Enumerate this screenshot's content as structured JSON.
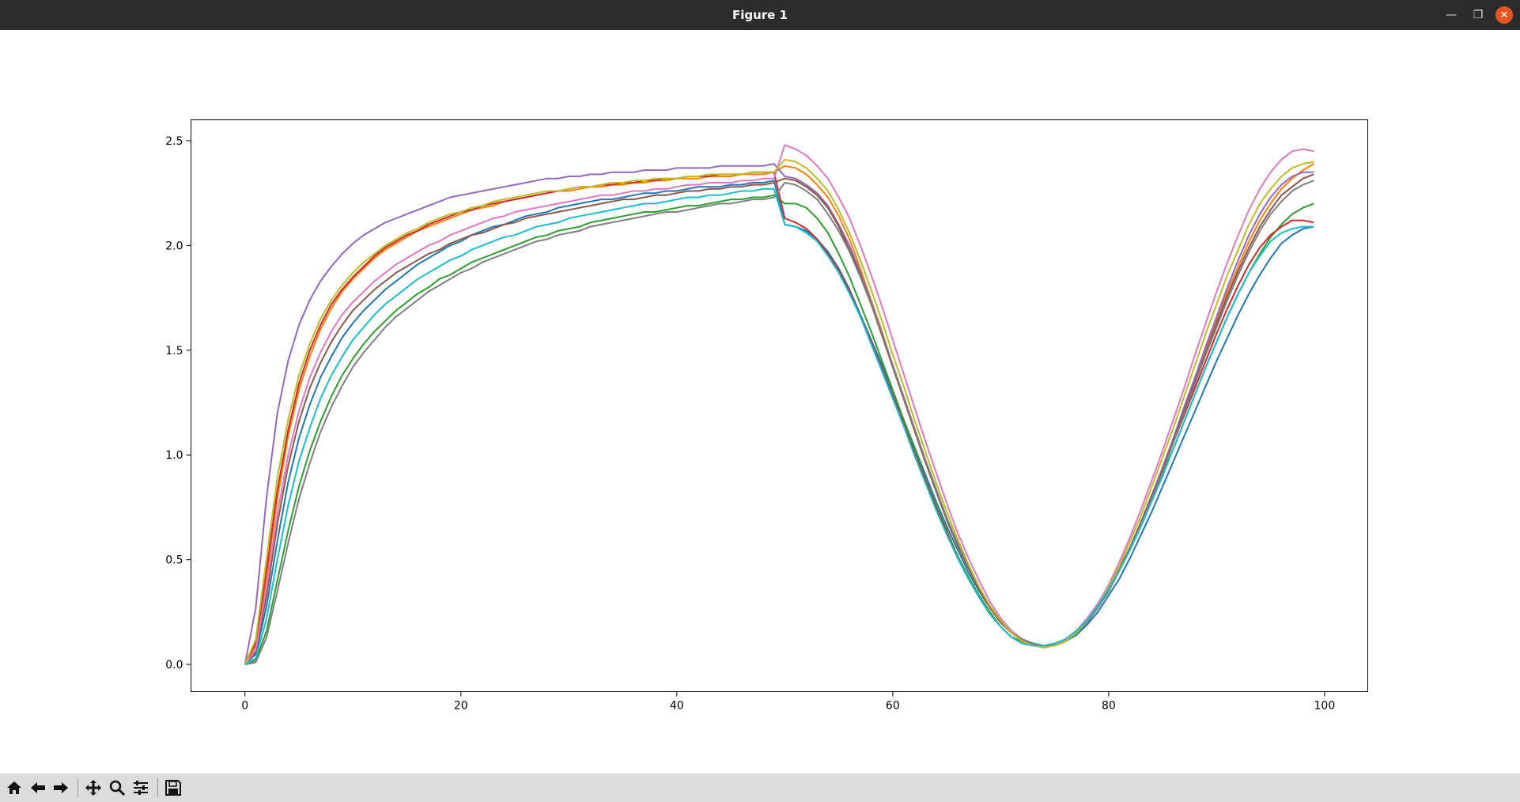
{
  "window": {
    "title": "Figure 1"
  },
  "toolbar": {
    "buttons": [
      {
        "name": "home-button",
        "icon": "home-icon"
      },
      {
        "name": "back-button",
        "icon": "arrow-left-icon"
      },
      {
        "name": "forward-button",
        "icon": "arrow-right-icon"
      },
      {
        "name": "pan-button",
        "icon": "move-icon"
      },
      {
        "name": "zoom-button",
        "icon": "magnifier-icon"
      },
      {
        "name": "configure-subplots-button",
        "icon": "sliders-icon"
      },
      {
        "name": "save-button",
        "icon": "floppy-disk-icon"
      }
    ]
  },
  "chart_data": {
    "type": "line",
    "title": "",
    "xlabel": "",
    "ylabel": "",
    "xlim": [
      -5,
      104
    ],
    "ylim": [
      -0.13,
      2.6
    ],
    "xticks": [
      0,
      20,
      40,
      60,
      80,
      100
    ],
    "yticks": [
      0.0,
      0.5,
      1.0,
      1.5,
      2.0,
      2.5
    ],
    "xtick_labels": [
      "0",
      "20",
      "40",
      "60",
      "80",
      "100"
    ],
    "ytick_labels": [
      "0.0",
      "0.5",
      "1.0",
      "1.5",
      "2.0",
      "2.5"
    ],
    "grid": false,
    "legend": "none",
    "x": [
      0,
      1,
      2,
      3,
      4,
      5,
      6,
      7,
      8,
      9,
      10,
      11,
      12,
      13,
      14,
      15,
      16,
      17,
      18,
      19,
      20,
      21,
      22,
      23,
      24,
      25,
      26,
      27,
      28,
      29,
      30,
      31,
      32,
      33,
      34,
      35,
      36,
      37,
      38,
      39,
      40,
      41,
      42,
      43,
      44,
      45,
      46,
      47,
      48,
      49,
      50,
      51,
      52,
      53,
      54,
      55,
      56,
      57,
      58,
      59,
      60,
      61,
      62,
      63,
      64,
      65,
      66,
      67,
      68,
      69,
      70,
      71,
      72,
      73,
      74,
      75,
      76,
      77,
      78,
      79,
      80,
      81,
      82,
      83,
      84,
      85,
      86,
      87,
      88,
      89,
      90,
      91,
      92,
      93,
      94,
      95,
      96,
      97,
      98,
      99
    ],
    "series": [
      {
        "color": "#1f77b4",
        "values": [
          0.0,
          0.05,
          0.28,
          0.59,
          0.87,
          1.08,
          1.24,
          1.37,
          1.47,
          1.56,
          1.63,
          1.69,
          1.74,
          1.79,
          1.83,
          1.87,
          1.91,
          1.94,
          1.97,
          2.0,
          2.02,
          2.05,
          2.07,
          2.09,
          2.1,
          2.12,
          2.14,
          2.15,
          2.16,
          2.18,
          2.19,
          2.2,
          2.21,
          2.22,
          2.22,
          2.23,
          2.24,
          2.25,
          2.25,
          2.26,
          2.26,
          2.27,
          2.28,
          2.28,
          2.28,
          2.29,
          2.29,
          2.3,
          2.3,
          2.31,
          2.1,
          2.09,
          2.07,
          2.03,
          1.97,
          1.89,
          1.79,
          1.67,
          1.55,
          1.43,
          1.3,
          1.17,
          1.04,
          0.91,
          0.78,
          0.66,
          0.55,
          0.44,
          0.35,
          0.27,
          0.2,
          0.15,
          0.12,
          0.1,
          0.09,
          0.09,
          0.11,
          0.14,
          0.19,
          0.25,
          0.33,
          0.41,
          0.51,
          0.62,
          0.73,
          0.85,
          0.97,
          1.09,
          1.21,
          1.33,
          1.45,
          1.56,
          1.67,
          1.77,
          1.86,
          1.94,
          2.01,
          2.05,
          2.08,
          2.09
        ]
      },
      {
        "color": "#ff7f0e",
        "values": [
          0.0,
          0.09,
          0.42,
          0.79,
          1.09,
          1.31,
          1.47,
          1.6,
          1.7,
          1.78,
          1.84,
          1.89,
          1.94,
          1.98,
          2.01,
          2.04,
          2.07,
          2.09,
          2.11,
          2.13,
          2.15,
          2.17,
          2.18,
          2.19,
          2.21,
          2.22,
          2.23,
          2.24,
          2.25,
          2.26,
          2.26,
          2.27,
          2.28,
          2.28,
          2.29,
          2.29,
          2.3,
          2.3,
          2.31,
          2.31,
          2.32,
          2.32,
          2.32,
          2.33,
          2.33,
          2.33,
          2.34,
          2.34,
          2.34,
          2.35,
          2.38,
          2.37,
          2.34,
          2.29,
          2.23,
          2.14,
          2.03,
          1.89,
          1.74,
          1.59,
          1.43,
          1.27,
          1.12,
          0.97,
          0.83,
          0.69,
          0.57,
          0.46,
          0.36,
          0.28,
          0.2,
          0.15,
          0.12,
          0.1,
          0.09,
          0.09,
          0.11,
          0.15,
          0.2,
          0.27,
          0.35,
          0.45,
          0.56,
          0.68,
          0.81,
          0.94,
          1.08,
          1.22,
          1.37,
          1.51,
          1.65,
          1.78,
          1.9,
          2.02,
          2.12,
          2.2,
          2.27,
          2.32,
          2.36,
          2.39
        ]
      },
      {
        "color": "#2ca02c",
        "values": [
          0.0,
          0.02,
          0.16,
          0.4,
          0.64,
          0.85,
          1.02,
          1.16,
          1.28,
          1.38,
          1.46,
          1.53,
          1.59,
          1.64,
          1.69,
          1.73,
          1.77,
          1.8,
          1.84,
          1.86,
          1.89,
          1.92,
          1.94,
          1.96,
          1.98,
          2.0,
          2.02,
          2.04,
          2.05,
          2.07,
          2.08,
          2.09,
          2.11,
          2.12,
          2.13,
          2.14,
          2.15,
          2.16,
          2.16,
          2.17,
          2.18,
          2.19,
          2.19,
          2.2,
          2.21,
          2.22,
          2.22,
          2.23,
          2.23,
          2.24,
          2.2,
          2.2,
          2.18,
          2.13,
          2.06,
          1.96,
          1.85,
          1.72,
          1.59,
          1.45,
          1.31,
          1.17,
          1.03,
          0.89,
          0.76,
          0.64,
          0.52,
          0.42,
          0.33,
          0.25,
          0.18,
          0.13,
          0.11,
          0.09,
          0.09,
          0.1,
          0.12,
          0.16,
          0.21,
          0.28,
          0.36,
          0.45,
          0.55,
          0.67,
          0.78,
          0.91,
          1.03,
          1.16,
          1.29,
          1.42,
          1.54,
          1.66,
          1.77,
          1.87,
          1.96,
          2.04,
          2.1,
          2.15,
          2.18,
          2.2
        ]
      },
      {
        "color": "#d62728",
        "values": [
          0.0,
          0.1,
          0.45,
          0.83,
          1.12,
          1.34,
          1.5,
          1.62,
          1.72,
          1.79,
          1.85,
          1.9,
          1.95,
          1.99,
          2.02,
          2.05,
          2.07,
          2.1,
          2.12,
          2.14,
          2.16,
          2.17,
          2.19,
          2.2,
          2.21,
          2.22,
          2.23,
          2.24,
          2.25,
          2.26,
          2.27,
          2.28,
          2.28,
          2.29,
          2.29,
          2.3,
          2.3,
          2.31,
          2.31,
          2.32,
          2.32,
          2.33,
          2.33,
          2.33,
          2.34,
          2.34,
          2.34,
          2.35,
          2.35,
          2.35,
          2.13,
          2.11,
          2.08,
          2.03,
          1.96,
          1.88,
          1.78,
          1.66,
          1.54,
          1.41,
          1.28,
          1.15,
          1.01,
          0.88,
          0.75,
          0.63,
          0.51,
          0.41,
          0.32,
          0.24,
          0.18,
          0.13,
          0.1,
          0.09,
          0.09,
          0.1,
          0.12,
          0.16,
          0.21,
          0.28,
          0.36,
          0.46,
          0.56,
          0.68,
          0.8,
          0.93,
          1.06,
          1.19,
          1.32,
          1.45,
          1.58,
          1.7,
          1.81,
          1.91,
          1.99,
          2.05,
          2.09,
          2.12,
          2.12,
          2.11
        ]
      },
      {
        "color": "#9467bd",
        "values": [
          0.0,
          0.27,
          0.8,
          1.2,
          1.45,
          1.62,
          1.74,
          1.83,
          1.9,
          1.96,
          2.01,
          2.05,
          2.08,
          2.11,
          2.13,
          2.15,
          2.17,
          2.19,
          2.21,
          2.23,
          2.24,
          2.25,
          2.26,
          2.27,
          2.28,
          2.29,
          2.3,
          2.31,
          2.32,
          2.32,
          2.33,
          2.33,
          2.34,
          2.34,
          2.35,
          2.35,
          2.35,
          2.36,
          2.36,
          2.36,
          2.37,
          2.37,
          2.37,
          2.37,
          2.38,
          2.38,
          2.38,
          2.38,
          2.38,
          2.39,
          2.33,
          2.32,
          2.29,
          2.25,
          2.19,
          2.1,
          2.0,
          1.87,
          1.73,
          1.58,
          1.43,
          1.28,
          1.13,
          0.98,
          0.84,
          0.7,
          0.58,
          0.47,
          0.37,
          0.28,
          0.21,
          0.15,
          0.12,
          0.1,
          0.09,
          0.09,
          0.11,
          0.15,
          0.2,
          0.27,
          0.35,
          0.45,
          0.56,
          0.68,
          0.81,
          0.94,
          1.08,
          1.23,
          1.37,
          1.52,
          1.66,
          1.8,
          1.93,
          2.05,
          2.15,
          2.23,
          2.29,
          2.33,
          2.35,
          2.35
        ]
      },
      {
        "color": "#8c564b",
        "values": [
          0.0,
          0.06,
          0.33,
          0.67,
          0.95,
          1.16,
          1.32,
          1.44,
          1.54,
          1.62,
          1.69,
          1.74,
          1.79,
          1.83,
          1.87,
          1.9,
          1.93,
          1.96,
          1.98,
          2.01,
          2.03,
          2.05,
          2.06,
          2.08,
          2.1,
          2.11,
          2.13,
          2.14,
          2.15,
          2.16,
          2.17,
          2.18,
          2.19,
          2.2,
          2.21,
          2.22,
          2.22,
          2.23,
          2.24,
          2.24,
          2.25,
          2.26,
          2.26,
          2.27,
          2.27,
          2.28,
          2.28,
          2.29,
          2.29,
          2.3,
          2.32,
          2.31,
          2.28,
          2.24,
          2.18,
          2.09,
          1.98,
          1.86,
          1.72,
          1.57,
          1.42,
          1.27,
          1.12,
          0.97,
          0.83,
          0.69,
          0.57,
          0.46,
          0.36,
          0.27,
          0.2,
          0.15,
          0.11,
          0.1,
          0.09,
          0.09,
          0.11,
          0.15,
          0.2,
          0.27,
          0.35,
          0.45,
          0.56,
          0.68,
          0.8,
          0.93,
          1.07,
          1.21,
          1.35,
          1.49,
          1.63,
          1.76,
          1.88,
          1.99,
          2.09,
          2.17,
          2.24,
          2.28,
          2.32,
          2.34
        ]
      },
      {
        "color": "#e377c2",
        "values": [
          0.0,
          0.07,
          0.37,
          0.72,
          1.0,
          1.21,
          1.37,
          1.49,
          1.59,
          1.67,
          1.73,
          1.78,
          1.83,
          1.87,
          1.91,
          1.94,
          1.97,
          2.0,
          2.02,
          2.05,
          2.07,
          2.09,
          2.11,
          2.13,
          2.14,
          2.16,
          2.17,
          2.18,
          2.19,
          2.2,
          2.21,
          2.22,
          2.23,
          2.24,
          2.24,
          2.25,
          2.26,
          2.26,
          2.27,
          2.27,
          2.28,
          2.29,
          2.29,
          2.3,
          2.3,
          2.3,
          2.31,
          2.31,
          2.32,
          2.32,
          2.48,
          2.46,
          2.43,
          2.38,
          2.32,
          2.23,
          2.13,
          2.0,
          1.86,
          1.71,
          1.55,
          1.39,
          1.23,
          1.07,
          0.92,
          0.77,
          0.63,
          0.51,
          0.4,
          0.3,
          0.22,
          0.16,
          0.12,
          0.1,
          0.09,
          0.1,
          0.12,
          0.16,
          0.22,
          0.29,
          0.38,
          0.49,
          0.61,
          0.74,
          0.88,
          1.02,
          1.17,
          1.32,
          1.48,
          1.63,
          1.78,
          1.92,
          2.05,
          2.17,
          2.27,
          2.35,
          2.41,
          2.45,
          2.46,
          2.45
        ]
      },
      {
        "color": "#7f7f7f",
        "values": [
          0.0,
          0.01,
          0.13,
          0.35,
          0.58,
          0.79,
          0.96,
          1.11,
          1.23,
          1.33,
          1.42,
          1.49,
          1.55,
          1.61,
          1.66,
          1.7,
          1.74,
          1.78,
          1.81,
          1.84,
          1.87,
          1.89,
          1.92,
          1.94,
          1.96,
          1.98,
          2.0,
          2.02,
          2.03,
          2.05,
          2.06,
          2.07,
          2.09,
          2.1,
          2.11,
          2.12,
          2.13,
          2.14,
          2.15,
          2.16,
          2.16,
          2.17,
          2.18,
          2.19,
          2.2,
          2.2,
          2.21,
          2.22,
          2.22,
          2.23,
          2.3,
          2.29,
          2.26,
          2.22,
          2.15,
          2.07,
          1.97,
          1.85,
          1.72,
          1.58,
          1.43,
          1.28,
          1.13,
          0.98,
          0.84,
          0.7,
          0.58,
          0.47,
          0.37,
          0.28,
          0.21,
          0.15,
          0.12,
          0.1,
          0.09,
          0.09,
          0.11,
          0.15,
          0.2,
          0.27,
          0.35,
          0.45,
          0.55,
          0.67,
          0.79,
          0.92,
          1.06,
          1.2,
          1.34,
          1.48,
          1.61,
          1.74,
          1.86,
          1.97,
          2.07,
          2.15,
          2.21,
          2.26,
          2.29,
          2.31
        ]
      },
      {
        "color": "#bcbd22",
        "values": [
          0.0,
          0.12,
          0.51,
          0.89,
          1.17,
          1.38,
          1.53,
          1.65,
          1.74,
          1.81,
          1.87,
          1.92,
          1.96,
          2.0,
          2.03,
          2.06,
          2.08,
          2.11,
          2.13,
          2.15,
          2.16,
          2.18,
          2.19,
          2.21,
          2.22,
          2.23,
          2.24,
          2.25,
          2.26,
          2.26,
          2.27,
          2.28,
          2.28,
          2.29,
          2.3,
          2.3,
          2.31,
          2.31,
          2.32,
          2.32,
          2.32,
          2.33,
          2.33,
          2.34,
          2.34,
          2.34,
          2.34,
          2.35,
          2.35,
          2.35,
          2.41,
          2.4,
          2.37,
          2.32,
          2.26,
          2.17,
          2.06,
          1.93,
          1.79,
          1.64,
          1.48,
          1.33,
          1.17,
          1.02,
          0.87,
          0.73,
          0.6,
          0.48,
          0.37,
          0.28,
          0.21,
          0.15,
          0.11,
          0.09,
          0.08,
          0.09,
          0.11,
          0.15,
          0.21,
          0.28,
          0.37,
          0.47,
          0.59,
          0.71,
          0.85,
          0.99,
          1.13,
          1.28,
          1.43,
          1.58,
          1.72,
          1.86,
          1.98,
          2.1,
          2.2,
          2.27,
          2.33,
          2.37,
          2.39,
          2.4
        ]
      },
      {
        "color": "#17becf",
        "values": [
          0.0,
          0.03,
          0.22,
          0.5,
          0.76,
          0.97,
          1.13,
          1.27,
          1.38,
          1.47,
          1.55,
          1.61,
          1.67,
          1.72,
          1.76,
          1.8,
          1.84,
          1.87,
          1.9,
          1.93,
          1.95,
          1.98,
          2.0,
          2.02,
          2.04,
          2.05,
          2.07,
          2.09,
          2.1,
          2.11,
          2.13,
          2.14,
          2.15,
          2.16,
          2.17,
          2.18,
          2.19,
          2.2,
          2.2,
          2.21,
          2.22,
          2.23,
          2.23,
          2.24,
          2.24,
          2.25,
          2.26,
          2.26,
          2.27,
          2.27,
          2.1,
          2.09,
          2.06,
          2.02,
          1.95,
          1.87,
          1.77,
          1.66,
          1.53,
          1.4,
          1.27,
          1.14,
          1.0,
          0.87,
          0.74,
          0.62,
          0.51,
          0.41,
          0.32,
          0.24,
          0.18,
          0.13,
          0.1,
          0.09,
          0.09,
          0.1,
          0.12,
          0.16,
          0.21,
          0.28,
          0.36,
          0.45,
          0.55,
          0.66,
          0.78,
          0.9,
          1.03,
          1.16,
          1.29,
          1.42,
          1.54,
          1.66,
          1.77,
          1.87,
          1.95,
          2.02,
          2.06,
          2.08,
          2.09,
          2.09
        ]
      }
    ]
  }
}
